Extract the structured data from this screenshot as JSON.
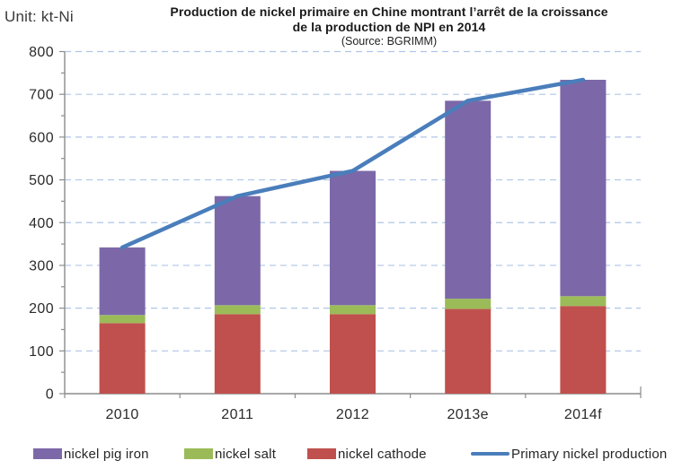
{
  "unit_label": "Unit: kt-Ni",
  "title": {
    "line1": "Production de nickel primaire en Chine montrant l’arrêt de la croissance",
    "line2": "de la production de NPI en 2014",
    "source": "(Source: BGRIMM)"
  },
  "colors": {
    "nickel_pig_iron": "#7C68A8",
    "nickel_salt": "#9BBB59",
    "nickel_cathode": "#C0504D",
    "primary_line": "#4A7EBB",
    "gridline": "#AFC6E6",
    "axis": "#8C8C8C",
    "text": "#333333"
  },
  "chart_data": {
    "type": "bar",
    "subtype": "stacked-bars-with-line",
    "title": "Production de nickel primaire en Chine montrant l’arrêt de la croissance de la production de NPI en 2014",
    "subtitle": "(Source: BGRIMM)",
    "unit": "kt-Ni",
    "categories": [
      "2010",
      "2011",
      "2012",
      "2013e",
      "2014f"
    ],
    "series": [
      {
        "name": "nickel cathode",
        "type": "bar",
        "color": "#C0504D",
        "values": [
          165,
          186,
          186,
          198,
          205
        ]
      },
      {
        "name": "nickel salt",
        "type": "bar",
        "color": "#9BBB59",
        "values": [
          19,
          21,
          21,
          24,
          23
        ]
      },
      {
        "name": "nickel pig iron",
        "type": "bar",
        "color": "#7C68A8",
        "values": [
          158,
          255,
          314,
          463,
          506
        ]
      },
      {
        "name": "Primary nickel production",
        "type": "line",
        "color": "#4A7EBB",
        "values": [
          342,
          462,
          521,
          685,
          734
        ]
      }
    ],
    "stacked": true,
    "ylim": [
      0,
      800
    ],
    "ytick_interval": 100,
    "yminor_interval": 50,
    "grid": "horizontal-dashed",
    "legend_position": "bottom"
  },
  "legend": {
    "items": [
      {
        "label": "nickel pig iron",
        "swatch": "box",
        "color": "#7C68A8"
      },
      {
        "label": "nickel salt",
        "swatch": "box",
        "color": "#9BBB59"
      },
      {
        "label": "nickel cathode",
        "swatch": "box",
        "color": "#C0504D"
      },
      {
        "label": "Primary nickel production",
        "swatch": "line",
        "color": "#4A7EBB"
      }
    ]
  }
}
